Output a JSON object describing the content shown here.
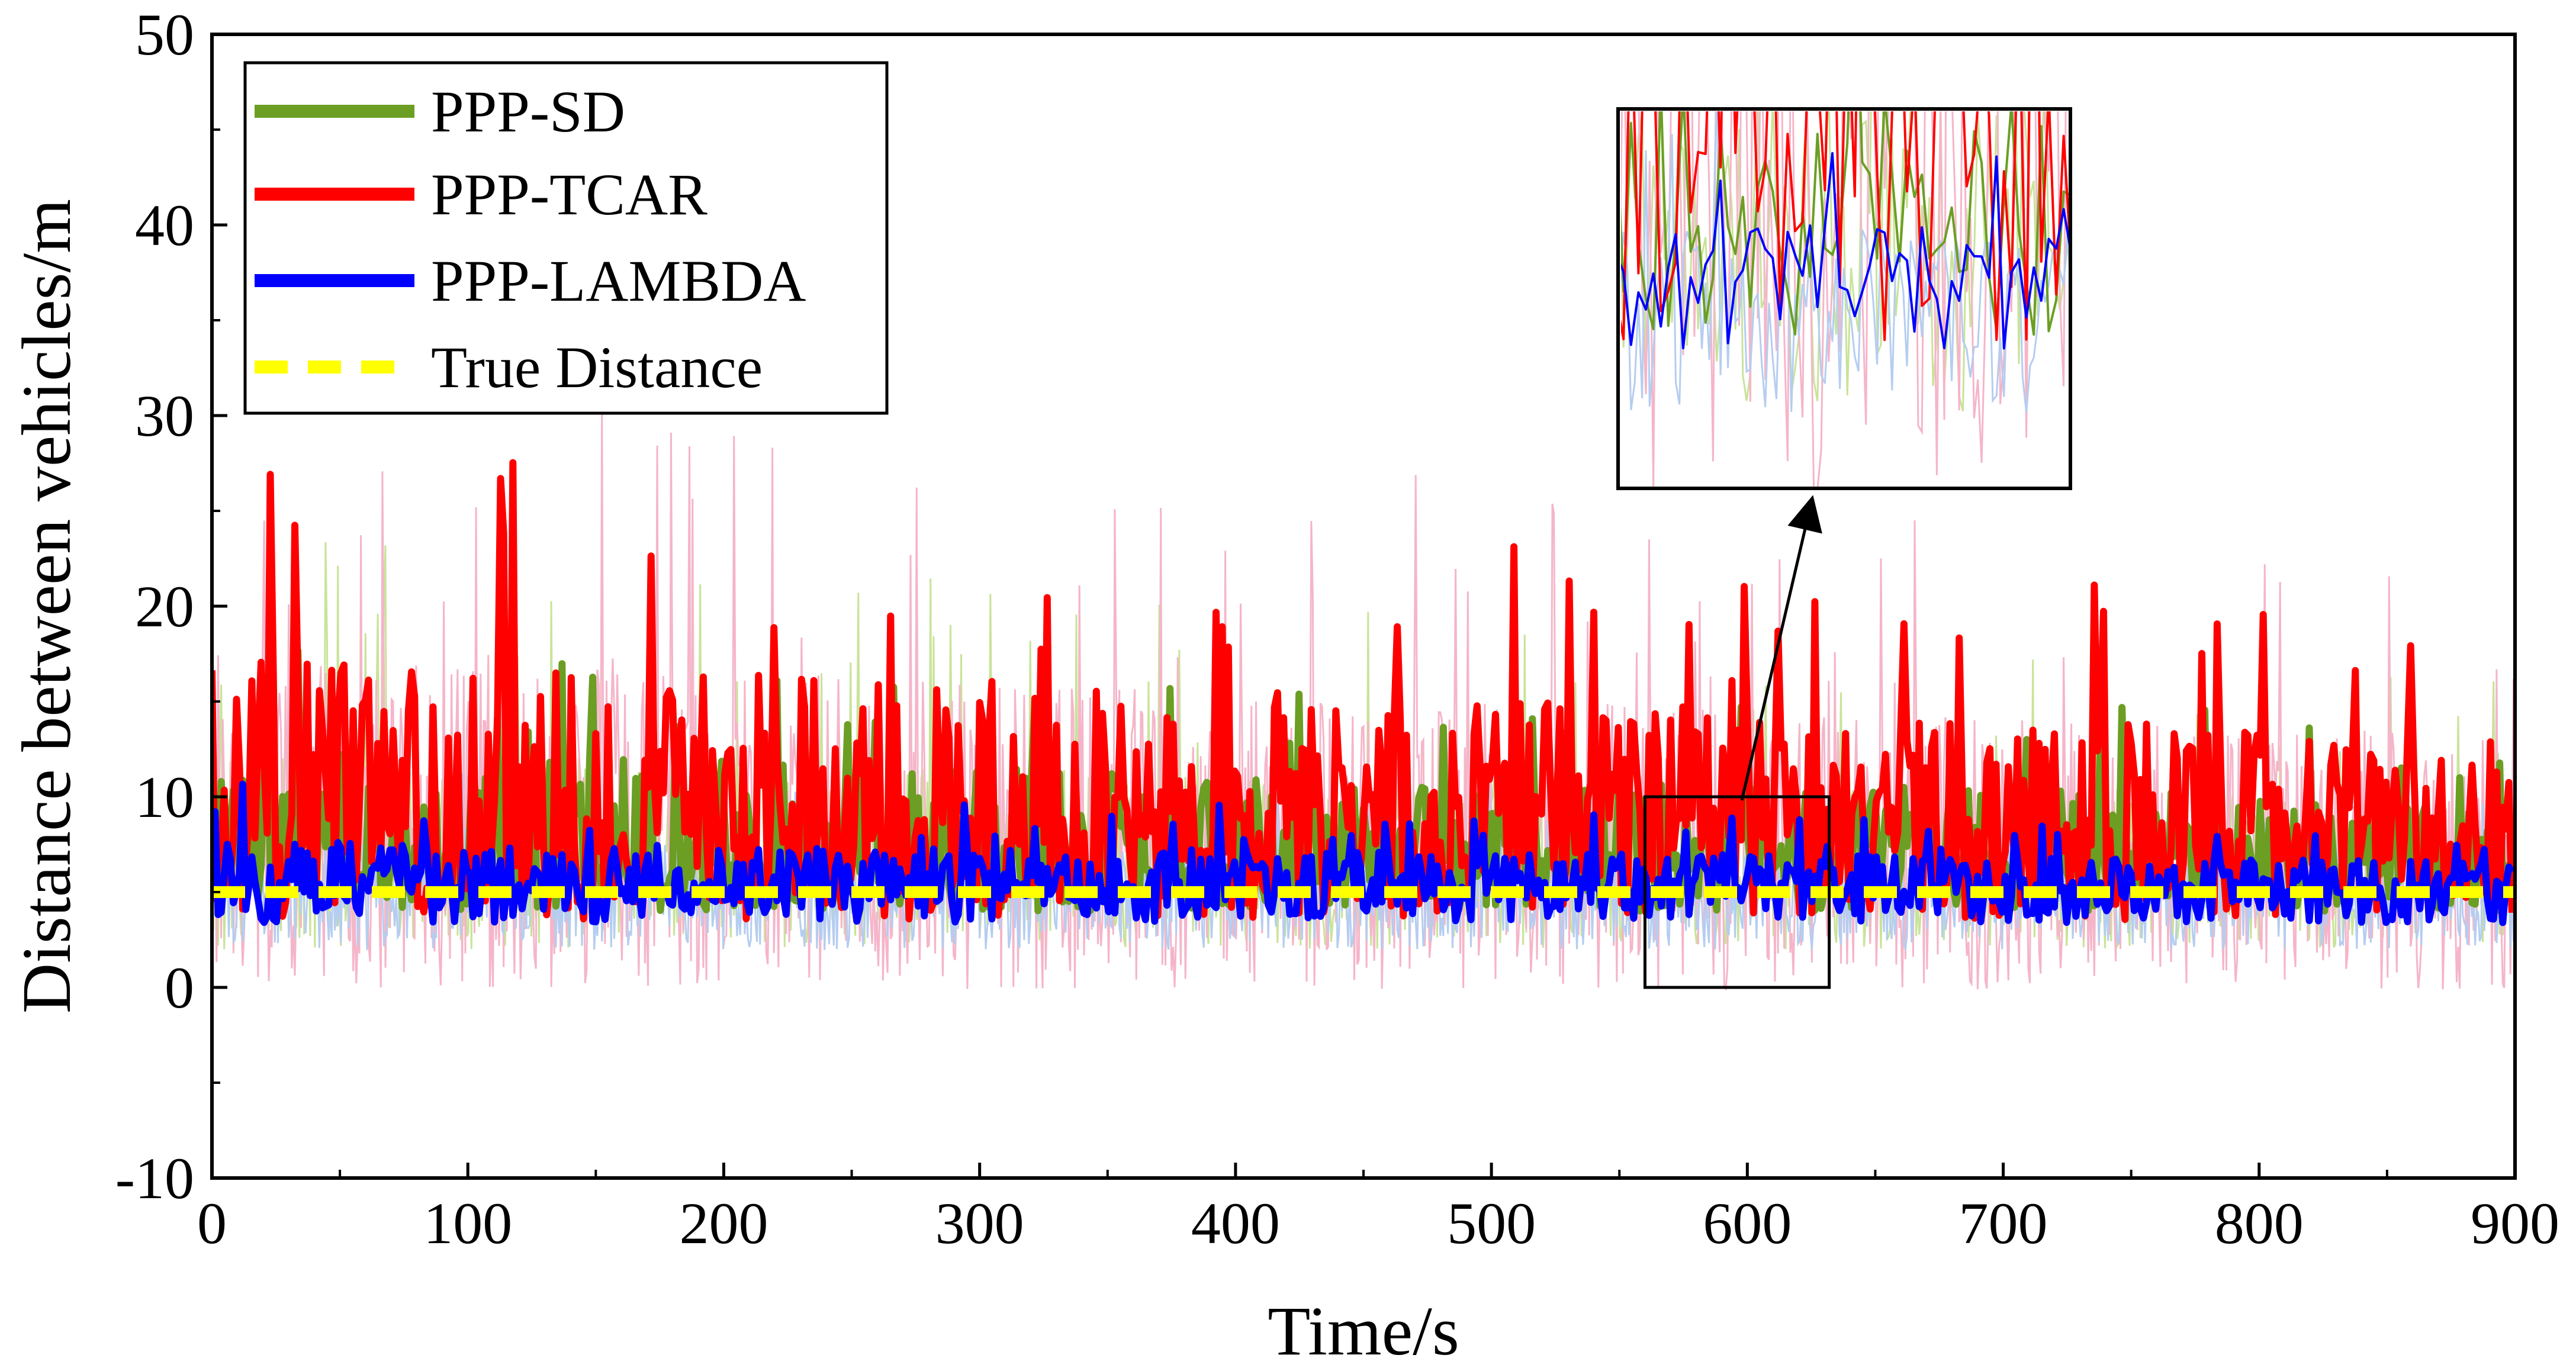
{
  "chart_data": {
    "type": "line",
    "title": "",
    "xlabel": "Time/s",
    "ylabel": "Distance between vehicles/m",
    "xlim": [
      0,
      900
    ],
    "ylim": [
      -10,
      50
    ],
    "xticks": [
      0,
      100,
      200,
      300,
      400,
      500,
      600,
      700,
      800,
      900
    ],
    "yticks": [
      -10,
      0,
      10,
      20,
      30,
      40,
      50
    ],
    "grid": false,
    "legend_position": "top-left",
    "series": [
      {
        "name": "PPP-SD",
        "color": "#6b9e23",
        "faint_color": "#c9e39a",
        "base": 6.5,
        "spread_low": 2.5,
        "spread_high": 6.0,
        "spike_max": 24.0
      },
      {
        "name": "PPP-TCAR",
        "color": "#ff0000",
        "faint_color": "#f5b5c9",
        "base": 8.0,
        "spread_low": 4.5,
        "spread_high": 9.5,
        "spike_max": 33.0
      },
      {
        "name": "PPP-LAMBDA",
        "color": "#0000ff",
        "faint_color": "#b5cdf0",
        "base": 5.2,
        "spread_low": 1.8,
        "spread_high": 2.5,
        "spike_max": 13.5
      },
      {
        "name": "True Distance",
        "color": "#ffff00",
        "value": 5.0,
        "style": "dashed"
      }
    ],
    "zoom_window": {
      "x_range": [
        560,
        632
      ],
      "y_range": [
        0,
        10
      ]
    }
  }
}
